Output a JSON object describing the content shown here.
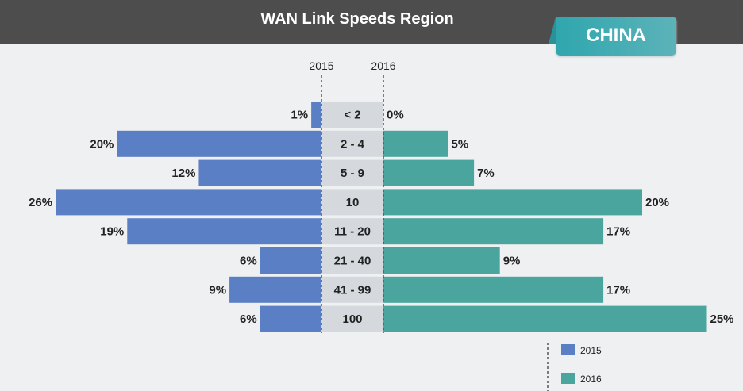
{
  "header": {
    "title": "WAN Link Speeds Region",
    "badge": "CHINA"
  },
  "chart_data": {
    "type": "bar",
    "orientation": "horizontal-butterfly",
    "title": "WAN Link Speeds Region",
    "region": "CHINA",
    "categories": [
      "< 2",
      "2 - 4",
      "5 - 9",
      "10",
      "11 - 20",
      "21 - 40",
      "41 - 99",
      "100"
    ],
    "series": [
      {
        "name": "2015",
        "color": "#5b7fc4",
        "values": [
          1,
          20,
          12,
          26,
          19,
          6,
          9,
          6
        ],
        "labels": [
          "1%",
          "20%",
          "12%",
          "26%",
          "19%",
          "6%",
          "9%",
          "6%"
        ]
      },
      {
        "name": "2016",
        "color": "#4aa59f",
        "values": [
          0,
          5,
          7,
          20,
          17,
          9,
          17,
          25
        ],
        "labels": [
          "0%",
          "5%",
          "7%",
          "20%",
          "17%",
          "9%",
          "17%",
          "25%"
        ]
      }
    ],
    "axis_labels": [
      "2015",
      "2016"
    ],
    "legend": [
      "2015",
      "2016"
    ],
    "legend_placement": "bottom-right"
  }
}
